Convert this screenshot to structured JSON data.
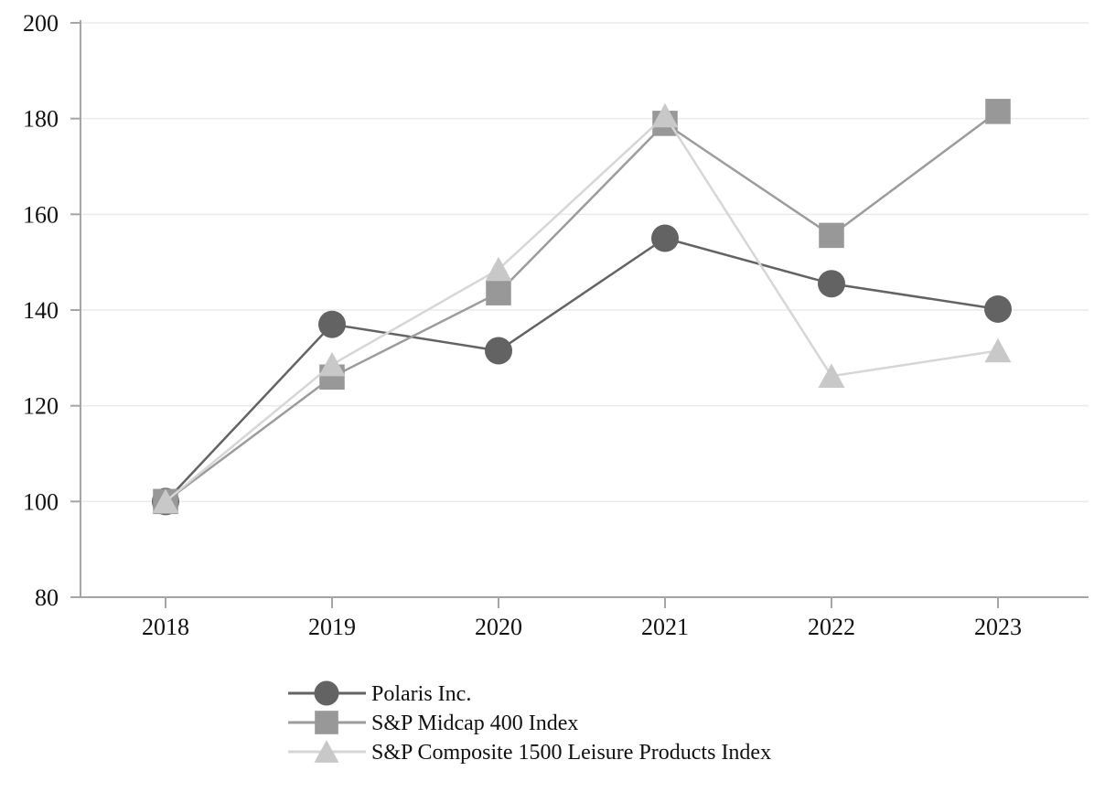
{
  "chart_data": {
    "type": "line",
    "title": "",
    "categories": [
      "2018",
      "2019",
      "2020",
      "2021",
      "2022",
      "2023"
    ],
    "series": [
      {
        "name": "Polaris Inc.",
        "marker": "circle",
        "line_color": "#636363",
        "marker_color": "#636363",
        "values": [
          100,
          137,
          131.5,
          155,
          145.5,
          140.2
        ]
      },
      {
        "name": "S&P Midcap 400 Index",
        "marker": "square",
        "line_color": "#9c9c9c",
        "marker_color": "#989898",
        "values": [
          100,
          126,
          143.6,
          179,
          155.6,
          181.5
        ]
      },
      {
        "name": "S&P Composite 1500 Leisure Products Index",
        "marker": "triangle",
        "line_color": "#d6d6d6",
        "marker_color": "#c8c8c8",
        "values": [
          100,
          128.6,
          148.5,
          180.6,
          126.2,
          131.5
        ]
      }
    ],
    "y_ticks": [
      80,
      100,
      120,
      140,
      160,
      180,
      200
    ],
    "ylim": [
      80,
      200
    ],
    "grid": "horizontal",
    "legend_position": "bottom-left",
    "colors": {
      "axis": "#a5a5a5",
      "gridline": "#eaeaea",
      "text": "#111111",
      "background": "#ffffff"
    }
  }
}
